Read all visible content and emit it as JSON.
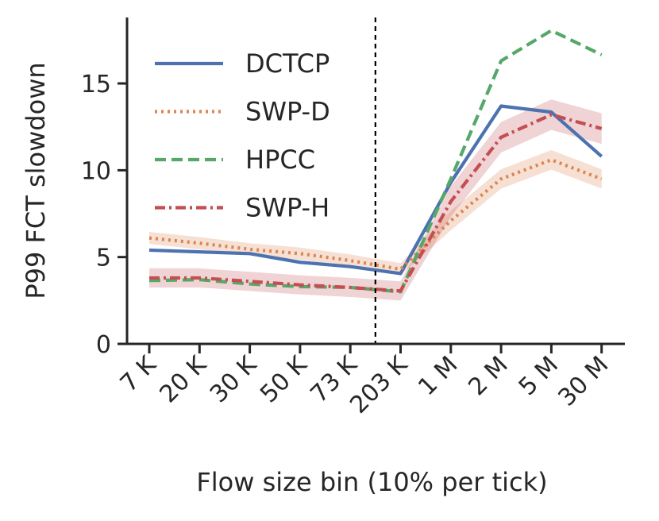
{
  "chart_data": {
    "type": "line",
    "title": "",
    "xlabel": "Flow size bin (10% per tick)",
    "ylabel": "P99 FCT slowdown",
    "categories": [
      "7 K",
      "20 K",
      "30 K",
      "50 K",
      "73 K",
      "203 K",
      "1 M",
      "2 M",
      "5 M",
      "30 M"
    ],
    "yticks": [
      "0",
      "5",
      "10",
      "15"
    ],
    "ylim": [
      0,
      18.8
    ],
    "grid": false,
    "legend_position": "top-left",
    "divider_after_category": "73 K",
    "series": [
      {
        "name": "DCTCP",
        "color": "#4c72b0",
        "dash": "solid",
        "values": [
          5.4,
          5.3,
          5.2,
          4.7,
          4.45,
          4.05,
          9.3,
          13.7,
          13.35,
          10.8
        ],
        "band": 0
      },
      {
        "name": "SWP-D",
        "color": "#dd8452",
        "dash": "dotted",
        "values": [
          6.1,
          5.8,
          5.45,
          5.2,
          4.8,
          4.3,
          7.1,
          9.5,
          10.6,
          9.5
        ],
        "band": 0.35
      },
      {
        "name": "HPCC",
        "color": "#55a868",
        "dash": "dashed",
        "values": [
          3.65,
          3.7,
          3.45,
          3.3,
          3.25,
          3.0,
          9.5,
          16.3,
          18.05,
          16.65
        ],
        "band": 0
      },
      {
        "name": "SWP-H",
        "color": "#c44e52",
        "dash": "dashdot",
        "values": [
          3.8,
          3.8,
          3.6,
          3.4,
          3.25,
          3.05,
          8.2,
          11.9,
          13.2,
          12.4
        ],
        "band": 0.55
      }
    ]
  }
}
